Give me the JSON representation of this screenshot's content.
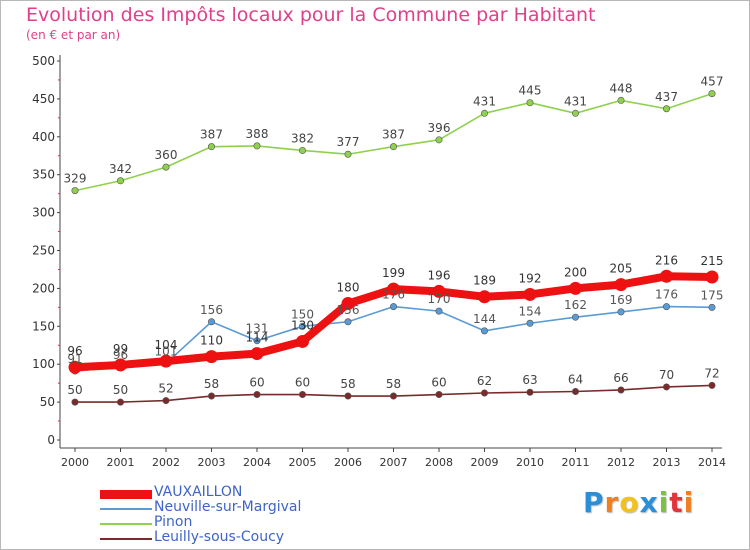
{
  "title": "Evolution des Impôts locaux pour la Commune par Habitant",
  "subtitle": "(en € et par an)",
  "logo": {
    "letters": [
      "P",
      "r",
      "o",
      "x",
      "i",
      "t",
      "i"
    ],
    "colors": [
      "#2a8fd6",
      "#f07f1f",
      "#f3c11e",
      "#2a8fd6",
      "#7cc242",
      "#e2343b",
      "#f07f1f"
    ]
  },
  "chart_data": {
    "type": "line",
    "title": "Evolution des Impôts locaux pour la Commune par Habitant",
    "ylabel": "(en € et par an)",
    "xlabel": "",
    "ylim": [
      0,
      500
    ],
    "yticks": [
      0,
      50,
      100,
      150,
      200,
      250,
      300,
      350,
      400,
      450,
      500
    ],
    "categories": [
      "2000",
      "2001",
      "2002",
      "2003",
      "2004",
      "2005",
      "2006",
      "2007",
      "2008",
      "2009",
      "2010",
      "2011",
      "2012",
      "2013",
      "2014"
    ],
    "grid": false,
    "legend_position": "bottom-left",
    "series": [
      {
        "name": "VAUXAILLON",
        "color": "#ee1111",
        "values": [
          96,
          99,
          104,
          110,
          114,
          130,
          180,
          199,
          196,
          189,
          192,
          200,
          205,
          216,
          215
        ],
        "labels": [
          "96",
          "99",
          "104",
          "110",
          "114",
          "130",
          "180",
          "199",
          "196",
          "189",
          "192",
          "200",
          "205",
          "216",
          "215"
        ]
      },
      {
        "name": "Neuville-sur-Margival",
        "color": "#5b9bd5",
        "values": [
          91,
          96,
          101,
          156,
          131,
          150,
          156,
          176,
          170,
          144,
          154,
          162,
          169,
          176,
          175
        ],
        "labels": [
          "91",
          "96",
          "101",
          "156",
          "131",
          "150",
          "156",
          "176",
          "170",
          "144",
          "154",
          "162",
          "169",
          "176",
          "175"
        ]
      },
      {
        "name": "Pinon",
        "color": "#8fd14f",
        "values": [
          329,
          342,
          360,
          387,
          388,
          382,
          377,
          387,
          396,
          431,
          445,
          431,
          448,
          437,
          457
        ],
        "labels": [
          "329",
          "342",
          "360",
          "387",
          "388",
          "382",
          "377",
          "387",
          "396",
          "431",
          "445",
          "431",
          "448",
          "437",
          "457"
        ]
      },
      {
        "name": "Leuilly-sous-Coucy",
        "color": "#7a2a2a",
        "values": [
          50,
          50,
          52,
          58,
          60,
          60,
          58,
          58,
          60,
          62,
          63,
          64,
          66,
          70,
          72
        ],
        "labels": [
          "50",
          "50",
          "52",
          "58",
          "60",
          "60",
          "58",
          "58",
          "60",
          "62",
          "63",
          "64",
          "66",
          "70",
          "72"
        ]
      }
    ]
  }
}
